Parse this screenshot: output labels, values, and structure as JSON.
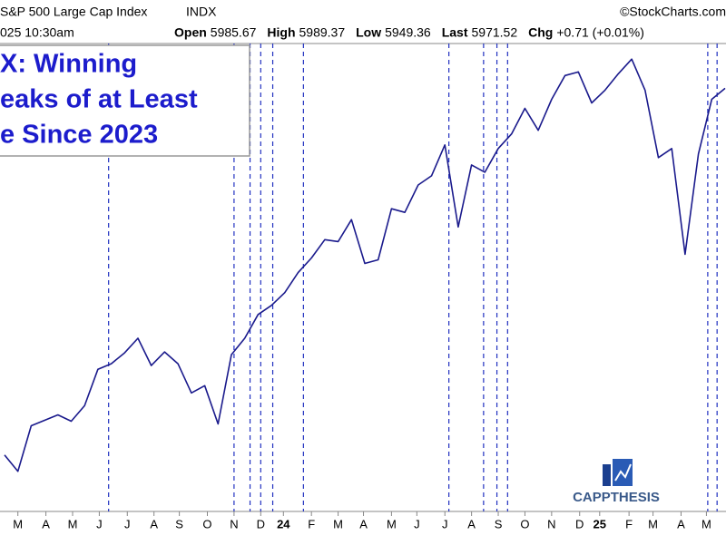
{
  "chart_data": {
    "type": "line",
    "header": {
      "symbol": "S&P 500 Large Cap Index",
      "exchange": "INDX",
      "source": "©StockCharts.com",
      "time": "025 10:30am",
      "quotes": [
        {
          "label": "Open",
          "value": "5985.67"
        },
        {
          "label": "High",
          "value": "5989.37"
        },
        {
          "label": "Low",
          "value": "5949.36"
        },
        {
          "label": "Last",
          "value": "5971.52"
        },
        {
          "label": "Chg",
          "value": "+0.71 (+0.01%)"
        }
      ]
    },
    "title_lines": [
      "X: Winning",
      "eaks of at Least",
      "e Since 2023"
    ],
    "logo": "CAPPTHESIS",
    "series": [
      {
        "color": "#1a1a8c",
        "values": [
          3950,
          3860,
          4110,
          4140,
          4170,
          4135,
          4220,
          4420,
          4450,
          4510,
          4590,
          4440,
          4515,
          4450,
          4290,
          4330,
          4120,
          4500,
          4590,
          4720,
          4770,
          4840,
          4950,
          5030,
          5130,
          5120,
          5240,
          5000,
          5020,
          5300,
          5280,
          5430,
          5480,
          5650,
          5200,
          5540,
          5500,
          5630,
          5710,
          5850,
          5730,
          5900,
          6030,
          6050,
          5880,
          5950,
          6040,
          6120,
          5950,
          5580,
          5630,
          5050,
          5600,
          5900,
          5960
        ]
      }
    ],
    "streak_lines": {
      "color": "#2030c0",
      "x": [
        7.8,
        17.2,
        18.4,
        19.2,
        20.1,
        22.4,
        33.3,
        35.9,
        36.9,
        37.7,
        52.7,
        53.4
      ]
    },
    "xlim": [
      0,
      54
    ],
    "ylim": [
      3700,
      6300
    ],
    "xticks": [
      {
        "value": 1.0,
        "label": "M"
      },
      {
        "value": 3.1,
        "label": "A"
      },
      {
        "value": 5.1,
        "label": "M"
      },
      {
        "value": 7.1,
        "label": "J"
      },
      {
        "value": 9.2,
        "label": "J"
      },
      {
        "value": 11.2,
        "label": "A"
      },
      {
        "value": 13.1,
        "label": "S"
      },
      {
        "value": 15.2,
        "label": "O"
      },
      {
        "value": 17.2,
        "label": "N"
      },
      {
        "value": 19.2,
        "label": "D"
      },
      {
        "value": 20.9,
        "label": "24"
      },
      {
        "value": 23.0,
        "label": "F"
      },
      {
        "value": 25.0,
        "label": "M"
      },
      {
        "value": 26.9,
        "label": "A"
      },
      {
        "value": 29.0,
        "label": "M"
      },
      {
        "value": 30.9,
        "label": "J"
      },
      {
        "value": 33.0,
        "label": "J"
      },
      {
        "value": 35.0,
        "label": "A"
      },
      {
        "value": 37.0,
        "label": "S"
      },
      {
        "value": 39.0,
        "label": "O"
      },
      {
        "value": 41.0,
        "label": "N"
      },
      {
        "value": 43.1,
        "label": "D"
      },
      {
        "value": 44.6,
        "label": "25"
      },
      {
        "value": 46.8,
        "label": "F"
      },
      {
        "value": 48.6,
        "label": "M"
      },
      {
        "value": 50.7,
        "label": "A"
      },
      {
        "value": 52.6,
        "label": "M"
      }
    ]
  }
}
